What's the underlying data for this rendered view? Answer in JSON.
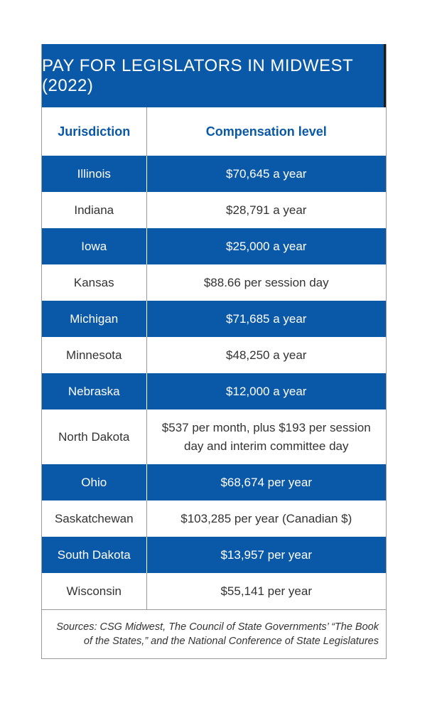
{
  "title": "PAY FOR LEGISLATORS IN MIDWEST (2022)",
  "table": {
    "headers": [
      "Jurisdiction",
      "Compensation level"
    ],
    "rows": [
      {
        "jurisdiction": "Illinois",
        "compensation": "$70,645 a year"
      },
      {
        "jurisdiction": "Indiana",
        "compensation": "$28,791 a year"
      },
      {
        "jurisdiction": "Iowa",
        "compensation": "$25,000 a year"
      },
      {
        "jurisdiction": "Kansas",
        "compensation": "$88.66 per session day"
      },
      {
        "jurisdiction": "Michigan",
        "compensation": "$71,685 a year"
      },
      {
        "jurisdiction": "Minnesota",
        "compensation": "$48,250 a year"
      },
      {
        "jurisdiction": "Nebraska",
        "compensation": "$12,000 a year"
      },
      {
        "jurisdiction": "North Dakota",
        "compensation": "$537 per month, plus $193 per session day and interim committee day"
      },
      {
        "jurisdiction": "Ohio",
        "compensation": "$68,674 per year"
      },
      {
        "jurisdiction": "Saskatchewan",
        "compensation": "$103,285 per year (Canadian $)"
      },
      {
        "jurisdiction": "South Dakota",
        "compensation": "$13,957 per year"
      },
      {
        "jurisdiction": "Wisconsin",
        "compensation": "$55,141 per year"
      }
    ]
  },
  "sources": "Sources: CSG Midwest, The Council of State Governments’ “The Book of the States,” and the National Conference of State Legislatures",
  "colors": {
    "accent": "#0a58a8",
    "border": "#9a9a9a",
    "text": "#333333"
  }
}
